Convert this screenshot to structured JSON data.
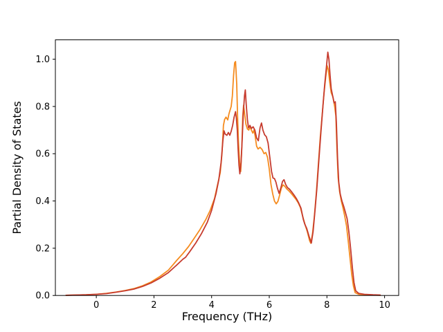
{
  "figure": {
    "background": "#ffffff",
    "frame_color": "#000000"
  },
  "chart_data": {
    "type": "line",
    "title": "",
    "xlabel": "Frequency (THz)",
    "ylabel": "Partial Density of States",
    "xlim": [
      -1.42,
      10.49
    ],
    "ylim": [
      0,
      1.082
    ],
    "xticks": [
      {
        "label": "0",
        "value": 0
      },
      {
        "label": "2",
        "value": 2
      },
      {
        "label": "4",
        "value": 4
      },
      {
        "label": "6",
        "value": 6
      },
      {
        "label": "8",
        "value": 8
      },
      {
        "label": "10",
        "value": 10
      }
    ],
    "yticks": [
      {
        "label": "0.0",
        "value": 0.0
      },
      {
        "label": "0.2",
        "value": 0.2
      },
      {
        "label": "0.4",
        "value": 0.4
      },
      {
        "label": "0.6",
        "value": 0.6
      },
      {
        "label": "0.8",
        "value": 0.8
      },
      {
        "label": "1.0",
        "value": 1.0
      }
    ],
    "grid": false,
    "legend": null,
    "series": [
      {
        "name": "pdos-orange",
        "color": "#f58b1e",
        "points": [
          [
            -1.05,
            0.001
          ],
          [
            -0.7,
            0.002
          ],
          [
            -0.35,
            0.003
          ],
          [
            0,
            0.005
          ],
          [
            0.35,
            0.009
          ],
          [
            0.7,
            0.015
          ],
          [
            1.0,
            0.021
          ],
          [
            1.3,
            0.029
          ],
          [
            1.6,
            0.041
          ],
          [
            1.9,
            0.057
          ],
          [
            2.2,
            0.08
          ],
          [
            2.5,
            0.107
          ],
          [
            2.8,
            0.15
          ],
          [
            3.0,
            0.177
          ],
          [
            3.2,
            0.207
          ],
          [
            3.4,
            0.243
          ],
          [
            3.6,
            0.28
          ],
          [
            3.8,
            0.322
          ],
          [
            3.95,
            0.36
          ],
          [
            4.1,
            0.41
          ],
          [
            4.2,
            0.465
          ],
          [
            4.3,
            0.52
          ],
          [
            4.36,
            0.6
          ],
          [
            4.41,
            0.72
          ],
          [
            4.45,
            0.745
          ],
          [
            4.5,
            0.755
          ],
          [
            4.56,
            0.743
          ],
          [
            4.6,
            0.768
          ],
          [
            4.64,
            0.785
          ],
          [
            4.68,
            0.8
          ],
          [
            4.72,
            0.845
          ],
          [
            4.76,
            0.93
          ],
          [
            4.8,
            0.985
          ],
          [
            4.83,
            0.99
          ],
          [
            4.87,
            0.895
          ],
          [
            4.9,
            0.76
          ],
          [
            4.93,
            0.65
          ],
          [
            4.97,
            0.565
          ],
          [
            5.01,
            0.525
          ],
          [
            5.05,
            0.63
          ],
          [
            5.08,
            0.76
          ],
          [
            5.11,
            0.805
          ],
          [
            5.15,
            0.765
          ],
          [
            5.19,
            0.725
          ],
          [
            5.24,
            0.705
          ],
          [
            5.29,
            0.7
          ],
          [
            5.33,
            0.715
          ],
          [
            5.38,
            0.7
          ],
          [
            5.43,
            0.687
          ],
          [
            5.47,
            0.7
          ],
          [
            5.51,
            0.675
          ],
          [
            5.56,
            0.632
          ],
          [
            5.61,
            0.62
          ],
          [
            5.68,
            0.627
          ],
          [
            5.75,
            0.618
          ],
          [
            5.82,
            0.6
          ],
          [
            5.88,
            0.605
          ],
          [
            5.94,
            0.585
          ],
          [
            6.0,
            0.535
          ],
          [
            6.06,
            0.47
          ],
          [
            6.12,
            0.43
          ],
          [
            6.18,
            0.4
          ],
          [
            6.24,
            0.388
          ],
          [
            6.3,
            0.398
          ],
          [
            6.36,
            0.425
          ],
          [
            6.42,
            0.455
          ],
          [
            6.48,
            0.468
          ],
          [
            6.54,
            0.462
          ],
          [
            6.6,
            0.452
          ],
          [
            6.68,
            0.443
          ],
          [
            6.76,
            0.432
          ],
          [
            6.84,
            0.42
          ],
          [
            6.92,
            0.408
          ],
          [
            7.0,
            0.393
          ],
          [
            7.08,
            0.372
          ],
          [
            7.16,
            0.335
          ],
          [
            7.24,
            0.3
          ],
          [
            7.32,
            0.27
          ],
          [
            7.4,
            0.232
          ],
          [
            7.44,
            0.221
          ],
          [
            7.5,
            0.262
          ],
          [
            7.56,
            0.33
          ],
          [
            7.63,
            0.43
          ],
          [
            7.7,
            0.55
          ],
          [
            7.77,
            0.67
          ],
          [
            7.84,
            0.77
          ],
          [
            7.9,
            0.855
          ],
          [
            7.96,
            0.925
          ],
          [
            8.01,
            0.972
          ],
          [
            8.05,
            0.955
          ],
          [
            8.1,
            0.9
          ],
          [
            8.15,
            0.858
          ],
          [
            8.21,
            0.84
          ],
          [
            8.27,
            0.8
          ],
          [
            8.31,
            0.76
          ],
          [
            8.35,
            0.61
          ],
          [
            8.39,
            0.5
          ],
          [
            8.44,
            0.44
          ],
          [
            8.5,
            0.4
          ],
          [
            8.56,
            0.37
          ],
          [
            8.62,
            0.335
          ],
          [
            8.68,
            0.295
          ],
          [
            8.74,
            0.23
          ],
          [
            8.8,
            0.16
          ],
          [
            8.86,
            0.09
          ],
          [
            8.92,
            0.04
          ],
          [
            8.98,
            0.012
          ],
          [
            9.1,
            0.005
          ],
          [
            9.3,
            0.003
          ],
          [
            9.6,
            0.002
          ],
          [
            9.85,
            0.001
          ]
        ]
      },
      {
        "name": "pdos-red",
        "color": "#c63b2e",
        "points": [
          [
            -1.05,
            0.001
          ],
          [
            -0.7,
            0.002
          ],
          [
            -0.35,
            0.003
          ],
          [
            0,
            0.005
          ],
          [
            0.35,
            0.008
          ],
          [
            0.7,
            0.014
          ],
          [
            1.0,
            0.02
          ],
          [
            1.3,
            0.027
          ],
          [
            1.6,
            0.038
          ],
          [
            1.9,
            0.053
          ],
          [
            2.2,
            0.073
          ],
          [
            2.5,
            0.097
          ],
          [
            2.8,
            0.13
          ],
          [
            3.0,
            0.153
          ],
          [
            3.1,
            0.162
          ],
          [
            3.25,
            0.187
          ],
          [
            3.45,
            0.222
          ],
          [
            3.65,
            0.262
          ],
          [
            3.85,
            0.31
          ],
          [
            4.0,
            0.36
          ],
          [
            4.15,
            0.43
          ],
          [
            4.25,
            0.49
          ],
          [
            4.33,
            0.565
          ],
          [
            4.39,
            0.655
          ],
          [
            4.43,
            0.697
          ],
          [
            4.47,
            0.683
          ],
          [
            4.53,
            0.678
          ],
          [
            4.58,
            0.69
          ],
          [
            4.63,
            0.678
          ],
          [
            4.68,
            0.695
          ],
          [
            4.73,
            0.72
          ],
          [
            4.78,
            0.755
          ],
          [
            4.83,
            0.778
          ],
          [
            4.86,
            0.75
          ],
          [
            4.89,
            0.7
          ],
          [
            4.92,
            0.62
          ],
          [
            4.95,
            0.55
          ],
          [
            4.98,
            0.515
          ],
          [
            5.02,
            0.56
          ],
          [
            5.06,
            0.66
          ],
          [
            5.1,
            0.77
          ],
          [
            5.14,
            0.845
          ],
          [
            5.17,
            0.87
          ],
          [
            5.2,
            0.81
          ],
          [
            5.24,
            0.745
          ],
          [
            5.28,
            0.71
          ],
          [
            5.33,
            0.72
          ],
          [
            5.38,
            0.707
          ],
          [
            5.44,
            0.714
          ],
          [
            5.5,
            0.7
          ],
          [
            5.56,
            0.667
          ],
          [
            5.62,
            0.655
          ],
          [
            5.68,
            0.71
          ],
          [
            5.73,
            0.73
          ],
          [
            5.78,
            0.7
          ],
          [
            5.84,
            0.68
          ],
          [
            5.9,
            0.672
          ],
          [
            5.96,
            0.645
          ],
          [
            6.02,
            0.585
          ],
          [
            6.08,
            0.525
          ],
          [
            6.13,
            0.497
          ],
          [
            6.18,
            0.495
          ],
          [
            6.23,
            0.48
          ],
          [
            6.28,
            0.455
          ],
          [
            6.34,
            0.432
          ],
          [
            6.4,
            0.455
          ],
          [
            6.46,
            0.483
          ],
          [
            6.51,
            0.49
          ],
          [
            6.57,
            0.47
          ],
          [
            6.63,
            0.457
          ],
          [
            6.7,
            0.45
          ],
          [
            6.78,
            0.438
          ],
          [
            6.86,
            0.425
          ],
          [
            6.94,
            0.41
          ],
          [
            7.02,
            0.392
          ],
          [
            7.1,
            0.37
          ],
          [
            7.18,
            0.322
          ],
          [
            7.23,
            0.303
          ],
          [
            7.3,
            0.283
          ],
          [
            7.38,
            0.25
          ],
          [
            7.46,
            0.222
          ],
          [
            7.52,
            0.27
          ],
          [
            7.58,
            0.35
          ],
          [
            7.65,
            0.45
          ],
          [
            7.72,
            0.57
          ],
          [
            7.79,
            0.69
          ],
          [
            7.86,
            0.8
          ],
          [
            7.92,
            0.89
          ],
          [
            7.98,
            0.965
          ],
          [
            8.03,
            1.03
          ],
          [
            8.07,
            1.0
          ],
          [
            8.11,
            0.93
          ],
          [
            8.15,
            0.875
          ],
          [
            8.2,
            0.845
          ],
          [
            8.25,
            0.815
          ],
          [
            8.29,
            0.82
          ],
          [
            8.33,
            0.73
          ],
          [
            8.37,
            0.58
          ],
          [
            8.41,
            0.48
          ],
          [
            8.46,
            0.43
          ],
          [
            8.52,
            0.4
          ],
          [
            8.58,
            0.378
          ],
          [
            8.64,
            0.352
          ],
          [
            8.7,
            0.325
          ],
          [
            8.76,
            0.27
          ],
          [
            8.82,
            0.2
          ],
          [
            8.88,
            0.12
          ],
          [
            8.94,
            0.055
          ],
          [
            9.0,
            0.02
          ],
          [
            9.1,
            0.009
          ],
          [
            9.3,
            0.005
          ],
          [
            9.6,
            0.003
          ],
          [
            9.85,
            0.002
          ]
        ]
      }
    ]
  }
}
